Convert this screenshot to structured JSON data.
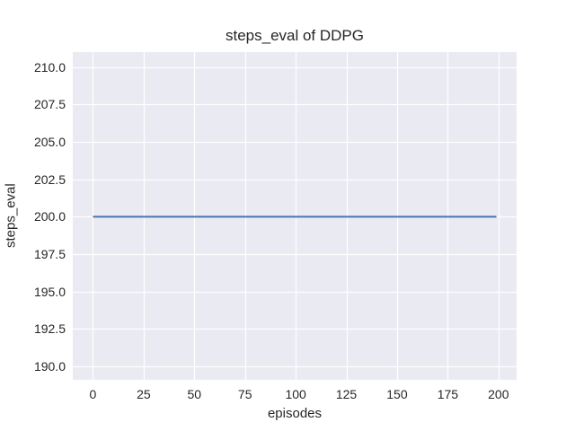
{
  "chart_data": {
    "type": "line",
    "title": "steps_eval of DDPG",
    "xlabel": "episodes",
    "ylabel": "steps_eval",
    "xlim": [
      -9.95,
      208.95
    ],
    "ylim": [
      189.1,
      211.0
    ],
    "xtick_values": [
      0,
      25,
      50,
      75,
      100,
      125,
      150,
      175,
      200
    ],
    "xtick_labels": [
      "0",
      "25",
      "50",
      "75",
      "100",
      "125",
      "150",
      "175",
      "200"
    ],
    "ytick_values": [
      190.0,
      192.5,
      195.0,
      197.5,
      200.0,
      202.5,
      205.0,
      207.5,
      210.0
    ],
    "ytick_labels": [
      "190.0",
      "192.5",
      "195.0",
      "197.5",
      "200.0",
      "202.5",
      "205.0",
      "207.5",
      "210.0"
    ],
    "grid": true,
    "legend": "none",
    "series": [
      {
        "name": "steps_eval",
        "color": "#4C72B0",
        "x": [
          0,
          199
        ],
        "y": [
          200.0,
          200.0
        ]
      }
    ],
    "style": {
      "axes_background": "#EAEAF2",
      "grid_color": "#FFFFFF",
      "figure_background": "#FFFFFF",
      "text_color": "#262626",
      "line_width": 2
    }
  }
}
